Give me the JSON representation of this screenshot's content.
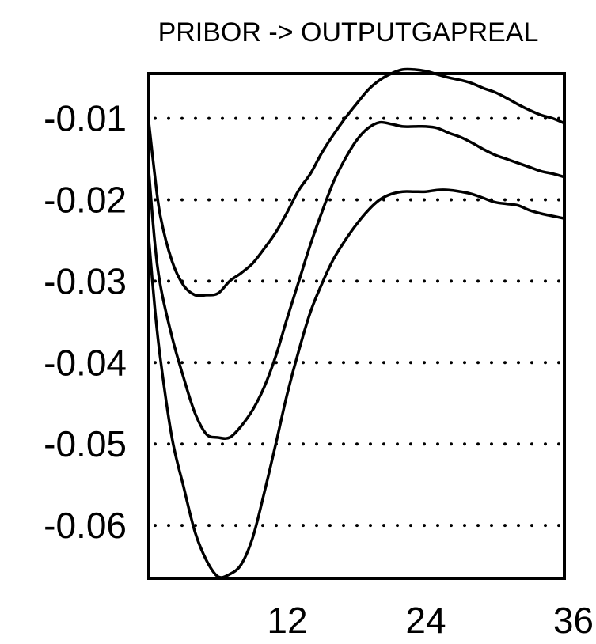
{
  "chart_data": {
    "type": "line",
    "title": "PRIBOR -> OUTPUTGAPREAL",
    "xlim": [
      0,
      36
    ],
    "ylim": [
      -0.0665,
      -0.0045
    ],
    "x_ticks": [
      12,
      24,
      36
    ],
    "x_tick_labels": [
      "12",
      "24",
      "36"
    ],
    "y_ticks": [
      -0.01,
      -0.02,
      -0.03,
      -0.04,
      -0.05,
      -0.06
    ],
    "y_tick_labels": [
      "-0.01",
      "-0.02",
      "-0.03",
      "-0.04",
      "-0.05",
      "-0.06"
    ],
    "grid": true,
    "legend": "none",
    "x": [
      0,
      0.5,
      1,
      2,
      3,
      4,
      5,
      6,
      7,
      8,
      9,
      10,
      11,
      12,
      13,
      14,
      15,
      16,
      17,
      18,
      19,
      20,
      21,
      22,
      23,
      24,
      25,
      26,
      27,
      28,
      29,
      30,
      31,
      32,
      33,
      34,
      35,
      36
    ],
    "series": [
      {
        "values": [
          -0.0105,
          -0.0168,
          -0.022,
          -0.0275,
          -0.0305,
          -0.0317,
          -0.0317,
          -0.0315,
          -0.03,
          -0.029,
          -0.0278,
          -0.026,
          -0.024,
          -0.0215,
          -0.0188,
          -0.0168,
          -0.0142,
          -0.012,
          -0.01,
          -0.0082,
          -0.0065,
          -0.0053,
          -0.0045,
          -0.004,
          -0.004,
          -0.0042,
          -0.0046,
          -0.005,
          -0.0053,
          -0.0057,
          -0.0063,
          -0.0068,
          -0.0075,
          -0.0083,
          -0.009,
          -0.0096,
          -0.01,
          -0.0106
        ]
      },
      {
        "values": [
          -0.0165,
          -0.025,
          -0.0305,
          -0.0368,
          -0.0418,
          -0.0462,
          -0.0488,
          -0.0492,
          -0.0492,
          -0.0478,
          -0.0458,
          -0.043,
          -0.0392,
          -0.0345,
          -0.03,
          -0.0255,
          -0.0215,
          -0.0178,
          -0.015,
          -0.0127,
          -0.0112,
          -0.0105,
          -0.0107,
          -0.011,
          -0.011,
          -0.011,
          -0.0112,
          -0.0118,
          -0.0123,
          -0.013,
          -0.0138,
          -0.0145,
          -0.015,
          -0.0155,
          -0.016,
          -0.0165,
          -0.0168,
          -0.0172
        ]
      },
      {
        "values": [
          -0.0248,
          -0.033,
          -0.0395,
          -0.0492,
          -0.0552,
          -0.0608,
          -0.0643,
          -0.0663,
          -0.066,
          -0.0648,
          -0.0615,
          -0.056,
          -0.05,
          -0.0438,
          -0.0385,
          -0.0338,
          -0.0303,
          -0.0273,
          -0.025,
          -0.023,
          -0.0213,
          -0.02,
          -0.0193,
          -0.019,
          -0.019,
          -0.019,
          -0.0188,
          -0.0188,
          -0.019,
          -0.0193,
          -0.0198,
          -0.0203,
          -0.0205,
          -0.0207,
          -0.0213,
          -0.0217,
          -0.022,
          -0.0223
        ]
      }
    ]
  }
}
